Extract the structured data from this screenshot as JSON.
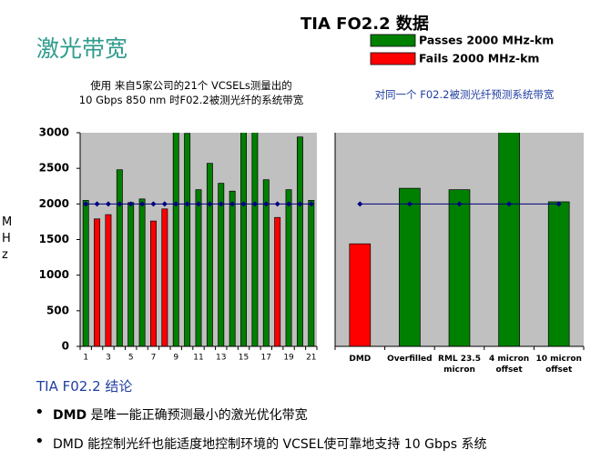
{
  "header": {
    "title": "激光带宽",
    "main_title": "TIA FO2.2  数据"
  },
  "chart_data": [
    {
      "type": "bar",
      "subtitle": [
        "使用  来自5家公司的21个  VCSELs测量出的",
        "10 Gbps 850 nm  时F02.2被测光纤的系统带宽"
      ],
      "ylabel": "MHz",
      "categories": [
        "1",
        null,
        "3",
        null,
        "5",
        null,
        "7",
        null,
        "9",
        null,
        "11",
        null,
        "13",
        null,
        "15",
        null,
        "17",
        null,
        "19",
        null,
        "21"
      ],
      "series": [
        {
          "name": "Passes 2000 MHz-km",
          "color": "#008000",
          "values": [
            2050,
            null,
            null,
            2480,
            2020,
            2070,
            null,
            null,
            3020,
            2990,
            2200,
            2570,
            2290,
            2180,
            3020,
            3020,
            2340,
            null,
            2200,
            2940,
            2050
          ]
        },
        {
          "name": "Fails 2000 MHz-km",
          "color": "#ff0000",
          "values": [
            null,
            1790,
            1850,
            null,
            null,
            null,
            1760,
            1930,
            null,
            null,
            null,
            null,
            null,
            null,
            null,
            null,
            null,
            1810,
            null,
            null,
            null
          ]
        },
        {
          "color": "#000080",
          "line": true,
          "values": [
            2000,
            2000,
            2000,
            2000,
            2000,
            2000,
            2000,
            2000,
            2000,
            2000,
            2000,
            2000,
            2000,
            2000,
            2000,
            2000,
            2000,
            2000,
            2000,
            2000,
            2000
          ]
        }
      ],
      "ylim": [
        0,
        3000
      ],
      "yticks": [
        0,
        500,
        1000,
        1500,
        2000,
        2500,
        3000
      ],
      "background": "#c0c0c0"
    },
    {
      "type": "bar",
      "subtitle": [
        "对同一个  F02.2被测光纤预测系统带宽"
      ],
      "categories": [
        "DMD",
        "Overfilled",
        "RML 23.5 micron",
        "4 micron offset",
        "10 micron offset"
      ],
      "series": [
        {
          "color": "#008000",
          "values": [
            null,
            2220,
            2200,
            3020,
            2030
          ]
        },
        {
          "color": "#ff0000",
          "values": [
            1440,
            null,
            null,
            null,
            null
          ]
        },
        {
          "color": "#000080",
          "line": true,
          "values": [
            2000,
            2000,
            2000,
            2000,
            2000
          ]
        }
      ],
      "ylim": [
        0,
        3000
      ],
      "background": "#c0c0c0"
    }
  ],
  "footer": {
    "heading": "TIA F02.2  结论",
    "bullets": [
      [
        "DMD",
        "  是唯一能正确预测最小的激光优化带宽"
      ],
      [
        "DMD  能控制光纤也能适度地控制环境的  VCSEL使可靠地支持  10 Gbps  系统"
      ]
    ]
  }
}
